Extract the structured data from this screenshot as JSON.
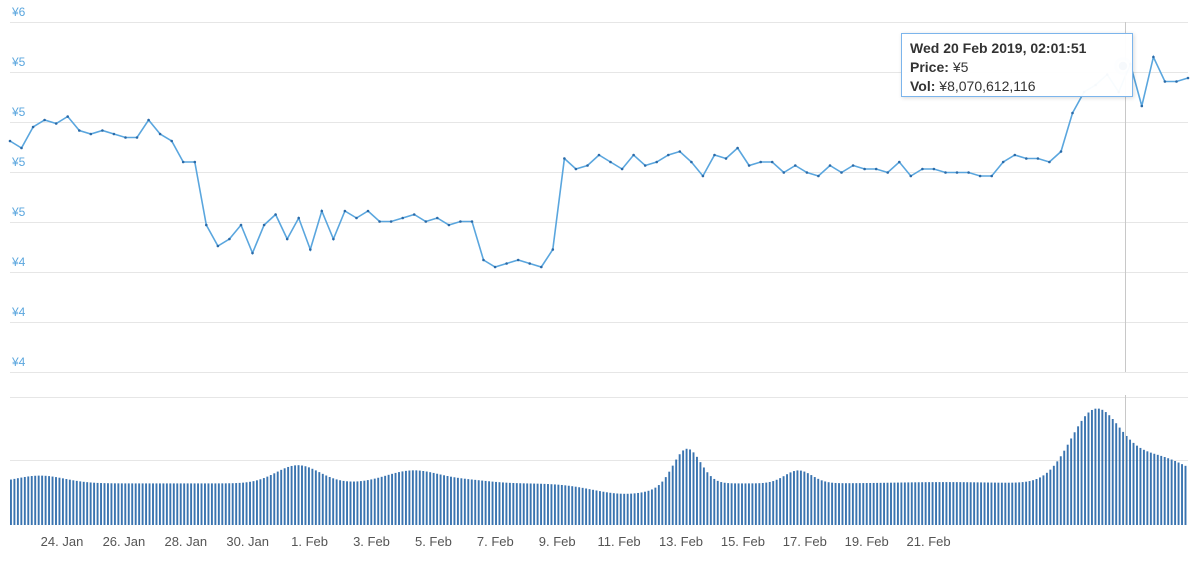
{
  "chart_data": {
    "type": "line",
    "title": "",
    "xlabel": "",
    "ylabel": "",
    "colors": {
      "line": "#5aa6de",
      "marker": "#2a6aa8",
      "volume": "#3a74b0",
      "grid": "#e6e6e6",
      "tick_y": "#5aa6de",
      "tick_x": "#555555"
    },
    "y_ticks": [
      "¥6",
      "¥5",
      "¥5",
      "¥5",
      "¥5",
      "¥4",
      "¥4",
      "¥4"
    ],
    "x_ticks": [
      "24. Jan",
      "26. Jan",
      "28. Jan",
      "30. Jan",
      "1. Feb",
      "3. Feb",
      "5. Feb",
      "7. Feb",
      "9. Feb",
      "11. Feb",
      "13. Feb",
      "15. Feb",
      "17. Feb",
      "19. Feb",
      "21. Feb"
    ],
    "price_series": {
      "name": "Price",
      "x_days_from_jan22_5": [
        0,
        0.3,
        0.6,
        0.9,
        1.2,
        1.5,
        1.8,
        2.1,
        2.4,
        2.7,
        3.0,
        3.3,
        3.6,
        3.9,
        4.2,
        4.5,
        4.8,
        5.1,
        5.4,
        5.7,
        6.0,
        6.3,
        6.6,
        6.9,
        7.2,
        7.5,
        7.8,
        8.1,
        8.4,
        8.7,
        9.0,
        9.3,
        9.6,
        9.9,
        10.2,
        10.5,
        10.8,
        11.1,
        11.4,
        11.7,
        12.0,
        12.3,
        12.6,
        12.9,
        13.2,
        13.5,
        13.8,
        14.1,
        14.4,
        14.7,
        15.0,
        15.3,
        15.6,
        15.9,
        16.2,
        16.5,
        16.8,
        17.1,
        17.4,
        17.7,
        18.0,
        18.3,
        18.6,
        18.9,
        19.2,
        19.5,
        19.8,
        20.1,
        20.4,
        20.7,
        21.0,
        21.3,
        21.6,
        21.9,
        22.2,
        22.5,
        22.8,
        23.1,
        23.4,
        23.7,
        24.0,
        24.3,
        24.6,
        24.9,
        25.2,
        25.5,
        25.8,
        26.1,
        26.4,
        26.7,
        27.0,
        27.3,
        27.6,
        27.9,
        28.2,
        28.5,
        28.8,
        29.1,
        29.4,
        29.7,
        30.0,
        30.3,
        30.6
      ],
      "values": [
        4.86,
        4.84,
        4.9,
        4.92,
        4.91,
        4.93,
        4.89,
        4.88,
        4.89,
        4.88,
        4.87,
        4.87,
        4.92,
        4.88,
        4.86,
        4.8,
        4.8,
        4.62,
        4.56,
        4.58,
        4.62,
        4.54,
        4.62,
        4.65,
        4.58,
        4.64,
        4.55,
        4.66,
        4.58,
        4.66,
        4.64,
        4.66,
        4.63,
        4.63,
        4.64,
        4.65,
        4.63,
        4.64,
        4.62,
        4.63,
        4.63,
        4.52,
        4.5,
        4.51,
        4.52,
        4.51,
        4.5,
        4.55,
        4.81,
        4.78,
        4.79,
        4.82,
        4.8,
        4.78,
        4.82,
        4.79,
        4.8,
        4.82,
        4.83,
        4.8,
        4.76,
        4.82,
        4.81,
        4.84,
        4.79,
        4.8,
        4.8,
        4.77,
        4.79,
        4.77,
        4.76,
        4.79,
        4.77,
        4.79,
        4.78,
        4.78,
        4.77,
        4.8,
        4.76,
        4.78,
        4.78,
        4.77,
        4.77,
        4.77,
        4.76,
        4.76,
        4.8,
        4.82,
        4.81,
        4.81,
        4.8,
        4.83,
        4.94,
        5.0,
        5.02,
        5.05,
        5.0,
        5.08,
        4.96,
        5.1,
        5.03,
        5.03,
        5.04
      ],
      "tooltip_index": 95
    },
    "volume_series": {
      "name": "Vol"
    },
    "tooltip": {
      "date": "Wed 20 Feb 2019, 02:01:51",
      "price_label": "Price:",
      "price_value": "¥5",
      "vol_label": "Vol:",
      "vol_value": "¥8,070,612,116"
    }
  }
}
